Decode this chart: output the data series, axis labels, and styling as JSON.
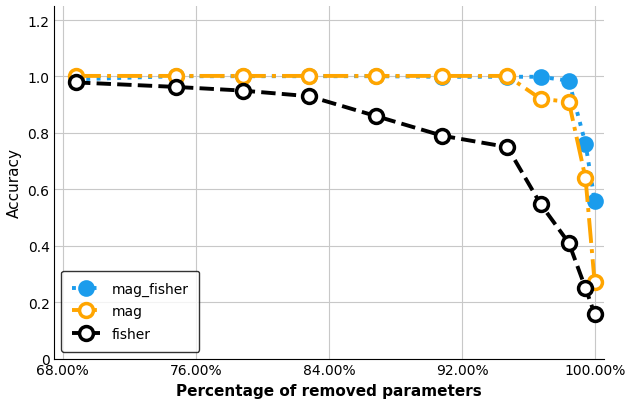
{
  "title": "",
  "xlabel": "Percentage of removed parameters",
  "ylabel": "Accuracy",
  "xlim": [
    0.675,
    1.005
  ],
  "ylim": [
    0,
    1.25
  ],
  "yticks": [
    0,
    0.2,
    0.4,
    0.6,
    0.8,
    1.0,
    1.2
  ],
  "xticks": [
    0.68,
    0.76,
    0.84,
    0.92,
    1.0
  ],
  "xtick_labels": [
    "68.00%",
    "76.00%",
    "84.00%",
    "92.00%",
    "100.00%"
  ],
  "series": [
    {
      "label": "mag_fisher",
      "color": "#1B9CEC",
      "linestyle": "dotted",
      "linewidth": 2.8,
      "marker": "o",
      "markersize": 10,
      "markerfacecolor": "#1B9CEC",
      "markeredgecolor": "#1B9CEC",
      "markeredgewidth": 2.0,
      "x": [
        0.688,
        0.748,
        0.788,
        0.828,
        0.868,
        0.908,
        0.947,
        0.967,
        0.984,
        0.994,
        0.9995
      ],
      "y": [
        0.99,
        1.001,
        1.001,
        1.001,
        1.001,
        0.999,
        0.999,
        0.999,
        0.985,
        0.762,
        0.56
      ]
    },
    {
      "label": "mag",
      "color": "#FFA500",
      "linestyle": "dashdot",
      "linewidth": 2.8,
      "marker": "o",
      "markersize": 10,
      "markerfacecolor": "white",
      "markeredgecolor": "#FFA500",
      "markeredgewidth": 2.5,
      "x": [
        0.688,
        0.748,
        0.788,
        0.828,
        0.868,
        0.908,
        0.947,
        0.967,
        0.984,
        0.994,
        0.9995
      ],
      "y": [
        1.002,
        1.002,
        1.002,
        1.002,
        1.002,
        1.002,
        1.002,
        0.921,
        0.91,
        0.64,
        0.27
      ]
    },
    {
      "label": "fisher",
      "color": "#000000",
      "linestyle": "dashed",
      "linewidth": 2.8,
      "marker": "o",
      "markersize": 10,
      "markerfacecolor": "white",
      "markeredgecolor": "#000000",
      "markeredgewidth": 2.5,
      "x": [
        0.688,
        0.748,
        0.788,
        0.828,
        0.868,
        0.908,
        0.947,
        0.967,
        0.984,
        0.994,
        0.9995
      ],
      "y": [
        0.979,
        0.963,
        0.95,
        0.93,
        0.86,
        0.79,
        0.75,
        0.548,
        0.41,
        0.25,
        0.158
      ]
    }
  ],
  "background_color": "#ffffff",
  "grid_color": "#c8c8c8",
  "legend_loc": "lower left",
  "legend_fontsize": 10,
  "figsize": [
    6.34,
    4.06
  ],
  "dpi": 100
}
